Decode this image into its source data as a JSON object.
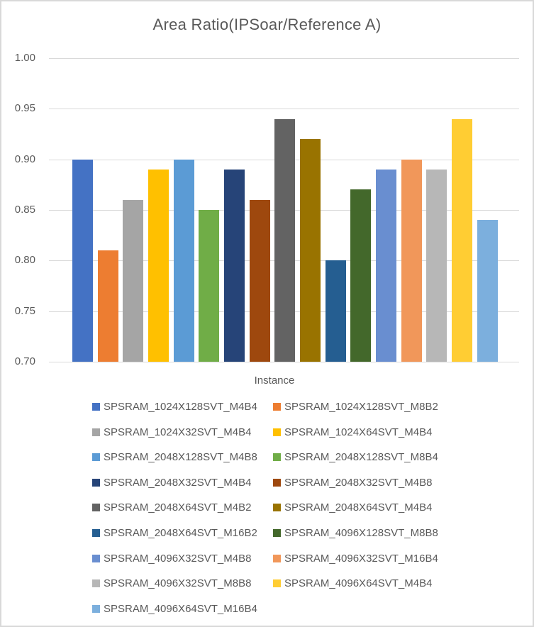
{
  "chart_data": {
    "type": "bar",
    "title": "Area Ratio(IPSoar/Reference A)",
    "xlabel": "Instance",
    "ylabel": "",
    "ylim": [
      0.7,
      1.0
    ],
    "yticks": [
      "1.00",
      "0.95",
      "0.90",
      "0.85",
      "0.80",
      "0.75",
      "0.70"
    ],
    "grid": true,
    "legend_position": "bottom",
    "legend_columns": 2,
    "series": [
      {
        "name": "SPSRAM_1024X128SVT_M4B4",
        "value": 0.9,
        "color": "#4472C4"
      },
      {
        "name": "SPSRAM_1024X128SVT_M8B2",
        "value": 0.81,
        "color": "#ED7D31"
      },
      {
        "name": "SPSRAM_1024X32SVT_M4B4",
        "value": 0.86,
        "color": "#A5A5A5"
      },
      {
        "name": "SPSRAM_1024X64SVT_M4B4",
        "value": 0.89,
        "color": "#FFC000"
      },
      {
        "name": "SPSRAM_2048X128SVT_M4B8",
        "value": 0.9,
        "color": "#5B9BD5"
      },
      {
        "name": "SPSRAM_2048X128SVT_M8B4",
        "value": 0.85,
        "color": "#70AD47"
      },
      {
        "name": "SPSRAM_2048X32SVT_M4B4",
        "value": 0.89,
        "color": "#264478"
      },
      {
        "name": "SPSRAM_2048X32SVT_M4B8",
        "value": 0.86,
        "color": "#9E480E"
      },
      {
        "name": "SPSRAM_2048X64SVT_M4B2",
        "value": 0.94,
        "color": "#636363"
      },
      {
        "name": "SPSRAM_2048X64SVT_M4B4",
        "value": 0.92,
        "color": "#997300"
      },
      {
        "name": "SPSRAM_2048X64SVT_M16B2",
        "value": 0.8,
        "color": "#255E91"
      },
      {
        "name": "SPSRAM_4096X128SVT_M8B8",
        "value": 0.87,
        "color": "#43682B"
      },
      {
        "name": "SPSRAM_4096X32SVT_M4B8",
        "value": 0.89,
        "color": "#698ED0"
      },
      {
        "name": "SPSRAM_4096X32SVT_M16B4",
        "value": 0.9,
        "color": "#F1975A"
      },
      {
        "name": "SPSRAM_4096X32SVT_M8B8",
        "value": 0.89,
        "color": "#B7B7B7"
      },
      {
        "name": "SPSRAM_4096X64SVT_M4B4",
        "value": 0.94,
        "color": "#FFCD33"
      },
      {
        "name": "SPSRAM_4096X64SVT_M16B4",
        "value": 0.84,
        "color": "#7CAFDD"
      }
    ]
  },
  "colors": {
    "text": "#595959",
    "gridline": "#D9D9D9",
    "border": "#D9D9D9",
    "background": "#FFFFFF"
  }
}
